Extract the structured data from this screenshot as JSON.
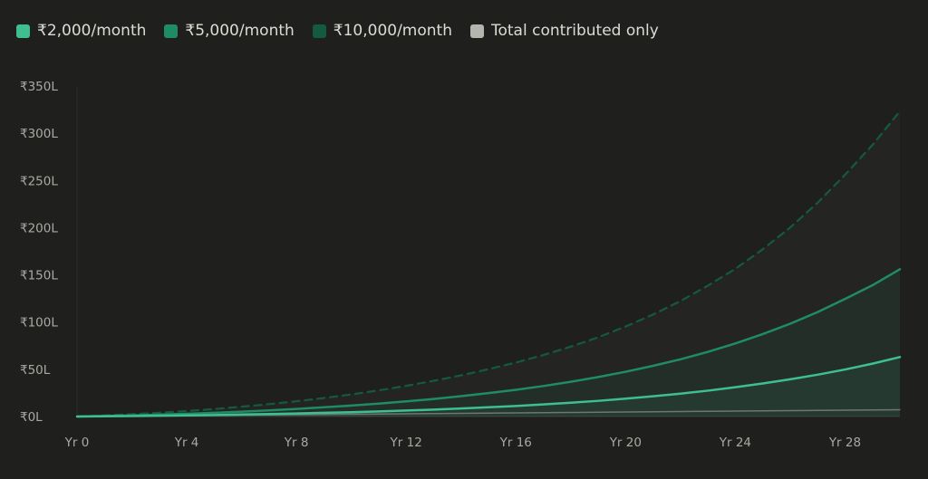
{
  "chart_data": {
    "type": "area",
    "x": [
      0,
      1,
      2,
      3,
      4,
      5,
      6,
      7,
      8,
      9,
      10,
      11,
      12,
      13,
      14,
      15,
      16,
      17,
      18,
      19,
      20,
      21,
      22,
      23,
      24,
      25,
      26,
      27,
      28,
      29,
      30
    ],
    "series": [
      {
        "name": "₹2,000/month",
        "color": "#3fbf8f",
        "values": [
          0,
          0.25,
          0.5,
          0.8,
          1.2,
          1.6,
          2.1,
          2.6,
          3.2,
          3.9,
          4.6,
          5.4,
          6.3,
          7.3,
          8.5,
          9.8,
          11.2,
          12.8,
          14.6,
          16.6,
          18.9,
          21.4,
          24.2,
          27.4,
          31.0,
          35.0,
          39.4,
          44.3,
          49.8,
          56.0,
          63.0
        ]
      },
      {
        "name": "₹5,000/month",
        "color": "#1f8c65",
        "values": [
          0,
          0.6,
          1.25,
          2.0,
          2.9,
          3.9,
          5.2,
          6.5,
          8.0,
          9.8,
          11.6,
          13.7,
          16.1,
          18.6,
          21.6,
          24.8,
          28.3,
          32.3,
          36.8,
          41.8,
          47.4,
          53.7,
          60.6,
          68.5,
          77.4,
          87.3,
          98.3,
          110.6,
          124.5,
          139.0,
          156.0
        ]
      },
      {
        "name": "₹10,000/month",
        "color": "#145a43",
        "dashed": true,
        "values": [
          0,
          1.2,
          2.5,
          4.0,
          5.8,
          7.9,
          10.4,
          13.1,
          16.2,
          19.6,
          23.4,
          27.7,
          32.5,
          37.8,
          43.6,
          50.1,
          57.2,
          65.1,
          74.0,
          83.9,
          95.3,
          108.0,
          122.3,
          138.6,
          156.4,
          177.1,
          200.2,
          226.4,
          256.1,
          287.5,
          323.4
        ]
      },
      {
        "name": "Total contributed only",
        "color": "#b5b5b0",
        "values": [
          0,
          0.24,
          0.48,
          0.72,
          0.96,
          1.2,
          1.44,
          1.68,
          1.92,
          2.16,
          2.4,
          2.64,
          2.88,
          3.12,
          3.36,
          3.6,
          3.84,
          4.08,
          4.32,
          4.56,
          4.8,
          5.04,
          5.28,
          5.52,
          5.76,
          6.0,
          6.24,
          6.48,
          6.72,
          6.96,
          7.2
        ]
      }
    ],
    "x_tick_labels": [
      {
        "x": 0,
        "label": "Yr 0"
      },
      {
        "x": 4,
        "label": "Yr 4"
      },
      {
        "x": 8,
        "label": "Yr 8"
      },
      {
        "x": 12,
        "label": "Yr 12"
      },
      {
        "x": 16,
        "label": "Yr 16"
      },
      {
        "x": 20,
        "label": "Yr 20"
      },
      {
        "x": 24,
        "label": "Yr 24"
      },
      {
        "x": 28,
        "label": "Yr 28"
      }
    ],
    "y_tick_labels": [
      {
        "y": 0,
        "label": "₹0L"
      },
      {
        "y": 50,
        "label": "₹50L"
      },
      {
        "y": 100,
        "label": "₹100L"
      },
      {
        "y": 150,
        "label": "₹150L"
      },
      {
        "y": 200,
        "label": "₹200L"
      },
      {
        "y": 250,
        "label": "₹250L"
      },
      {
        "y": 300,
        "label": "₹300L"
      },
      {
        "y": 350,
        "label": "₹350L"
      }
    ],
    "ylim": [
      0,
      350
    ],
    "xlim": [
      0,
      30
    ],
    "grid": false,
    "legend_position": "top-left"
  }
}
